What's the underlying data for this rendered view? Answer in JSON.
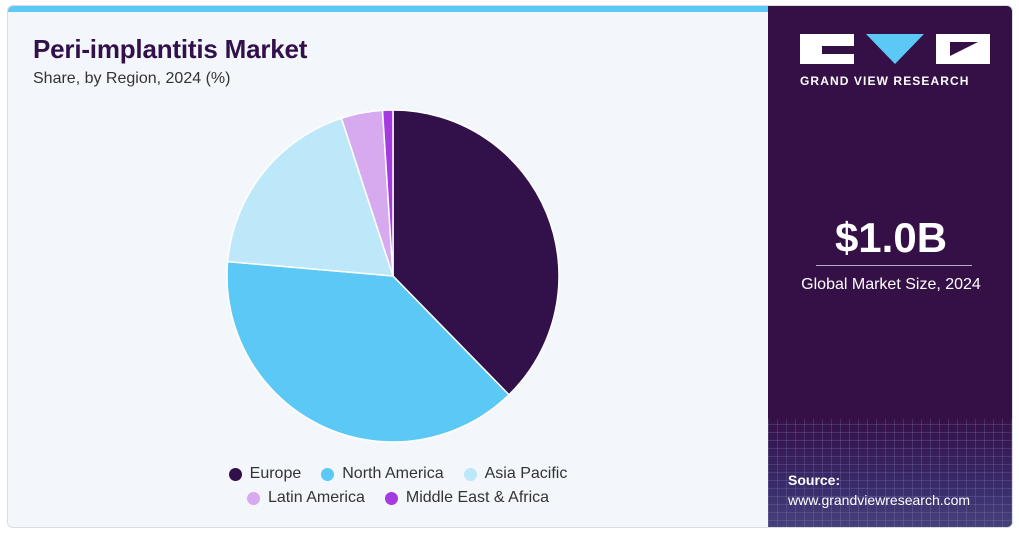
{
  "chart": {
    "title": "Peri-implantitis Market",
    "subtitle": "Share, by Region, 2024 (%)"
  },
  "chart_data": {
    "type": "pie",
    "title": "Peri-implantitis Market",
    "subtitle": "Share, by Region, 2024 (%)",
    "categories": [
      "Europe",
      "North America",
      "Asia Pacific",
      "Latin America",
      "Middle East & Africa"
    ],
    "values": [
      37.5,
      38.5,
      18.5,
      4.0,
      1.0
    ],
    "colors": [
      "#32104a",
      "#5bc8f5",
      "#bde8fa",
      "#d7aaef",
      "#a43be0"
    ],
    "legend_position": "bottom"
  },
  "legend": {
    "items": [
      {
        "label": "Europe",
        "color": "#32104a"
      },
      {
        "label": "North America",
        "color": "#5bc8f5"
      },
      {
        "label": "Asia Pacific",
        "color": "#bde8fa"
      },
      {
        "label": "Latin America",
        "color": "#d7aaef"
      },
      {
        "label": "Middle East & Africa",
        "color": "#a43be0"
      }
    ]
  },
  "side_panel": {
    "logo_text": "GRAND VIEW RESEARCH",
    "market_value": "$1.0B",
    "market_label": "Global Market Size, 2024",
    "source_title": "Source:",
    "source_url": "www.grandviewresearch.com"
  }
}
